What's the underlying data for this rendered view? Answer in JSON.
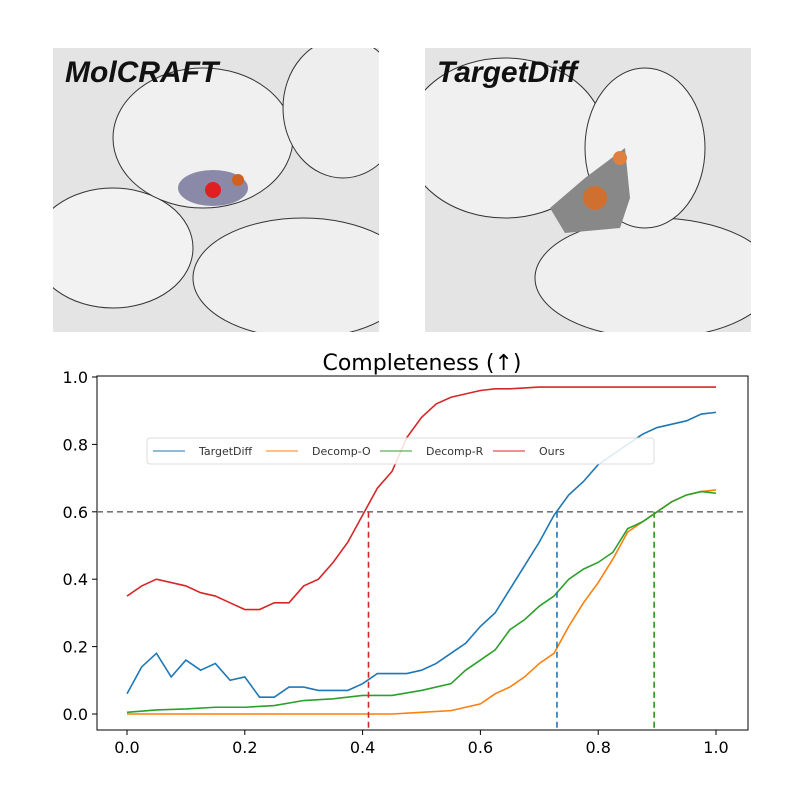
{
  "panels": [
    {
      "label": "MolCRAFT"
    },
    {
      "label": "TargetDiff"
    }
  ],
  "chart_data": {
    "type": "line",
    "title": "Completeness (↑)",
    "xlabel": "",
    "ylabel": "",
    "xlim": [
      -0.05,
      1.05
    ],
    "ylim": [
      -0.03,
      1.0
    ],
    "xticks": [
      "0.0",
      "0.2",
      "0.4",
      "0.6",
      "0.8",
      "1.0"
    ],
    "yticks": [
      "0.0",
      "0.2",
      "0.4",
      "0.6",
      "0.8",
      "1.0"
    ],
    "legend_position": "upper-center",
    "threshold": 0.6,
    "series": [
      {
        "name": "TargetDiff",
        "color": "#1f77b4",
        "crossing": 0.73,
        "x": [
          0,
          0.025,
          0.05,
          0.075,
          0.1,
          0.125,
          0.15,
          0.175,
          0.2,
          0.225,
          0.25,
          0.275,
          0.3,
          0.325,
          0.35,
          0.375,
          0.4,
          0.425,
          0.45,
          0.475,
          0.5,
          0.525,
          0.55,
          0.575,
          0.6,
          0.625,
          0.65,
          0.675,
          0.7,
          0.725,
          0.75,
          0.775,
          0.8,
          0.825,
          0.85,
          0.875,
          0.9,
          0.925,
          0.95,
          0.975,
          1.0
        ],
        "y": [
          0.06,
          0.14,
          0.18,
          0.11,
          0.16,
          0.13,
          0.15,
          0.1,
          0.11,
          0.05,
          0.05,
          0.08,
          0.08,
          0.07,
          0.07,
          0.07,
          0.09,
          0.12,
          0.12,
          0.12,
          0.13,
          0.15,
          0.18,
          0.21,
          0.26,
          0.3,
          0.37,
          0.44,
          0.51,
          0.59,
          0.65,
          0.69,
          0.74,
          0.77,
          0.8,
          0.83,
          0.85,
          0.86,
          0.87,
          0.89,
          0.895
        ]
      },
      {
        "name": "Decomp-O",
        "color": "#ff7f0e",
        "crossing": 0.895,
        "x": [
          0,
          0.1,
          0.2,
          0.3,
          0.4,
          0.45,
          0.5,
          0.55,
          0.6,
          0.625,
          0.65,
          0.675,
          0.7,
          0.725,
          0.75,
          0.775,
          0.8,
          0.825,
          0.85,
          0.875,
          0.9,
          0.925,
          0.95,
          0.975,
          1.0
        ],
        "y": [
          0,
          0,
          0,
          0,
          0,
          0,
          0.005,
          0.01,
          0.03,
          0.06,
          0.08,
          0.11,
          0.15,
          0.18,
          0.26,
          0.33,
          0.39,
          0.46,
          0.54,
          0.57,
          0.6,
          0.63,
          0.65,
          0.66,
          0.665
        ]
      },
      {
        "name": "Decomp-R",
        "color": "#2ca02c",
        "crossing": 0.895,
        "x": [
          0,
          0.05,
          0.1,
          0.15,
          0.2,
          0.25,
          0.3,
          0.35,
          0.4,
          0.45,
          0.5,
          0.55,
          0.575,
          0.6,
          0.625,
          0.65,
          0.675,
          0.7,
          0.725,
          0.75,
          0.775,
          0.8,
          0.825,
          0.85,
          0.875,
          0.9,
          0.925,
          0.95,
          0.975,
          1.0
        ],
        "y": [
          0.005,
          0.012,
          0.015,
          0.02,
          0.02,
          0.025,
          0.04,
          0.045,
          0.055,
          0.055,
          0.07,
          0.09,
          0.13,
          0.16,
          0.19,
          0.25,
          0.28,
          0.32,
          0.35,
          0.4,
          0.43,
          0.45,
          0.48,
          0.55,
          0.57,
          0.6,
          0.63,
          0.65,
          0.66,
          0.655
        ]
      },
      {
        "name": "Ours",
        "color": "#d62728",
        "crossing": 0.41,
        "x": [
          0,
          0.025,
          0.05,
          0.075,
          0.1,
          0.125,
          0.15,
          0.175,
          0.2,
          0.225,
          0.25,
          0.275,
          0.3,
          0.325,
          0.35,
          0.375,
          0.4,
          0.425,
          0.45,
          0.475,
          0.5,
          0.525,
          0.55,
          0.575,
          0.6,
          0.625,
          0.65,
          0.7,
          0.8,
          0.9,
          1.0
        ],
        "y": [
          0.35,
          0.38,
          0.4,
          0.39,
          0.38,
          0.36,
          0.35,
          0.33,
          0.31,
          0.31,
          0.33,
          0.33,
          0.38,
          0.4,
          0.45,
          0.51,
          0.59,
          0.67,
          0.72,
          0.82,
          0.88,
          0.92,
          0.94,
          0.95,
          0.96,
          0.965,
          0.965,
          0.97,
          0.97,
          0.97,
          0.97
        ]
      }
    ]
  }
}
